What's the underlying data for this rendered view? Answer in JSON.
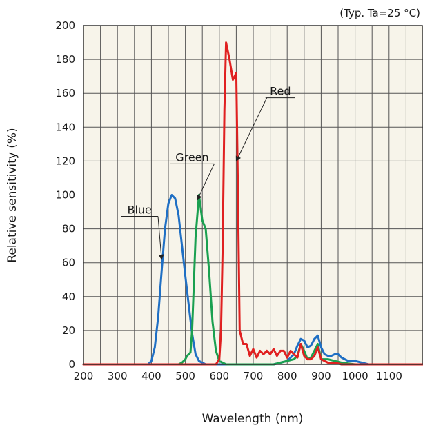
{
  "chart_data": {
    "type": "line",
    "note": "(Typ. Ta=25 °C)",
    "title": "",
    "xlabel": "Wavelength (nm)",
    "ylabel": "Relative sensitivity (%)",
    "xlim": [
      200,
      1200
    ],
    "ylim": [
      0,
      200
    ],
    "x_ticks": [
      200,
      300,
      400,
      500,
      600,
      700,
      800,
      900,
      1000,
      1100
    ],
    "x_tick_labels": [
      "200",
      "300",
      "400",
      "500",
      "600",
      "700",
      "800",
      "900",
      "1000",
      "1100"
    ],
    "y_ticks": [
      0,
      20,
      40,
      60,
      80,
      100,
      120,
      140,
      160,
      180,
      200
    ],
    "y_tick_labels": [
      "0",
      "20",
      "40",
      "60",
      "80",
      "100",
      "120",
      "140",
      "160",
      "180",
      "200"
    ],
    "grid": true,
    "plot_background": "#f7f4ea",
    "series": [
      {
        "name": "Blue",
        "color": "#1f6fc4",
        "x": [
          200,
          390,
          400,
          410,
          420,
          430,
          440,
          450,
          460,
          470,
          480,
          490,
          500,
          510,
          520,
          530,
          540,
          560,
          600,
          700,
          760,
          780,
          800,
          820,
          830,
          840,
          850,
          860,
          870,
          880,
          890,
          900,
          910,
          920,
          930,
          940,
          950,
          960,
          980,
          1000,
          1020,
          1040,
          1060,
          1200
        ],
        "y": [
          0,
          0,
          2,
          10,
          28,
          55,
          80,
          95,
          100,
          98,
          88,
          70,
          52,
          35,
          18,
          6,
          2,
          0,
          0,
          0,
          0,
          1,
          2,
          6,
          11,
          15,
          14,
          10,
          11,
          15,
          17,
          10,
          6,
          5,
          5,
          6,
          6,
          4,
          2,
          2,
          1,
          0,
          0,
          0
        ]
      },
      {
        "name": "Green",
        "color": "#1aa050",
        "x": [
          200,
          480,
          490,
          500,
          505,
          510,
          515,
          520,
          530,
          540,
          550,
          560,
          570,
          580,
          590,
          600,
          620,
          700,
          760,
          780,
          800,
          820,
          830,
          840,
          850,
          860,
          870,
          880,
          890,
          900,
          920,
          940,
          960,
          1000,
          1200
        ],
        "y": [
          0,
          0,
          1,
          3,
          5,
          6,
          7,
          20,
          75,
          100,
          85,
          80,
          55,
          25,
          8,
          2,
          0,
          0,
          0,
          1,
          2,
          3,
          5,
          12,
          8,
          3,
          4,
          8,
          12,
          3,
          3,
          2,
          1,
          0,
          0
        ]
      },
      {
        "name": "Red",
        "color": "#e02020",
        "x": [
          200,
          570,
          590,
          600,
          605,
          610,
          615,
          620,
          630,
          640,
          650,
          655,
          660,
          670,
          680,
          690,
          700,
          710,
          720,
          730,
          740,
          750,
          760,
          770,
          780,
          790,
          800,
          810,
          820,
          830,
          840,
          850,
          860,
          870,
          880,
          890,
          900,
          910,
          920,
          940,
          960,
          1000,
          1200
        ],
        "y": [
          0,
          0,
          0,
          3,
          20,
          70,
          150,
          190,
          180,
          168,
          172,
          100,
          20,
          12,
          12,
          5,
          9,
          4,
          8,
          6,
          8,
          6,
          9,
          5,
          8,
          8,
          4,
          8,
          6,
          4,
          12,
          5,
          3,
          3,
          5,
          10,
          3,
          2,
          1,
          1,
          0,
          0,
          0
        ]
      }
    ],
    "annotations": [
      {
        "text": "Red",
        "x": 780,
        "y": 159,
        "arrow_to_x": 650,
        "arrow_to_y": 120
      },
      {
        "text": "Green",
        "x": 520,
        "y": 120,
        "arrow_to_x": 535,
        "arrow_to_y": 97
      },
      {
        "text": "Blue",
        "x": 365,
        "y": 89,
        "arrow_to_x": 430,
        "arrow_to_y": 62
      }
    ]
  }
}
